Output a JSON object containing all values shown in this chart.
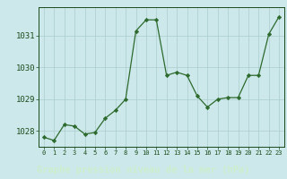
{
  "hours": [
    0,
    1,
    2,
    3,
    4,
    5,
    6,
    7,
    8,
    9,
    10,
    11,
    12,
    13,
    14,
    15,
    16,
    17,
    18,
    19,
    20,
    21,
    22,
    23
  ],
  "pressure": [
    1027.8,
    1027.7,
    1028.2,
    1028.15,
    1027.9,
    1027.95,
    1028.4,
    1028.65,
    1029.0,
    1031.15,
    1031.5,
    1031.5,
    1029.75,
    1029.85,
    1029.75,
    1029.1,
    1028.75,
    1029.0,
    1029.05,
    1029.05,
    1029.75,
    1029.75,
    1031.05,
    1031.6
  ],
  "line_color": "#2d6a2d",
  "marker_color": "#2d6a2d",
  "bg_color": "#cce8ea",
  "grid_color": "#aacccc",
  "xlabel": "Graphe pression niveau de la mer (hPa)",
  "xlabel_color": "#1a4a1a",
  "tick_color": "#1a4a1a",
  "ylim": [
    1027.5,
    1031.9
  ],
  "yticks": [
    1028,
    1029,
    1030,
    1031
  ],
  "bottom_bg": "#3a6a3a",
  "bottom_text_color": "#cceecc"
}
